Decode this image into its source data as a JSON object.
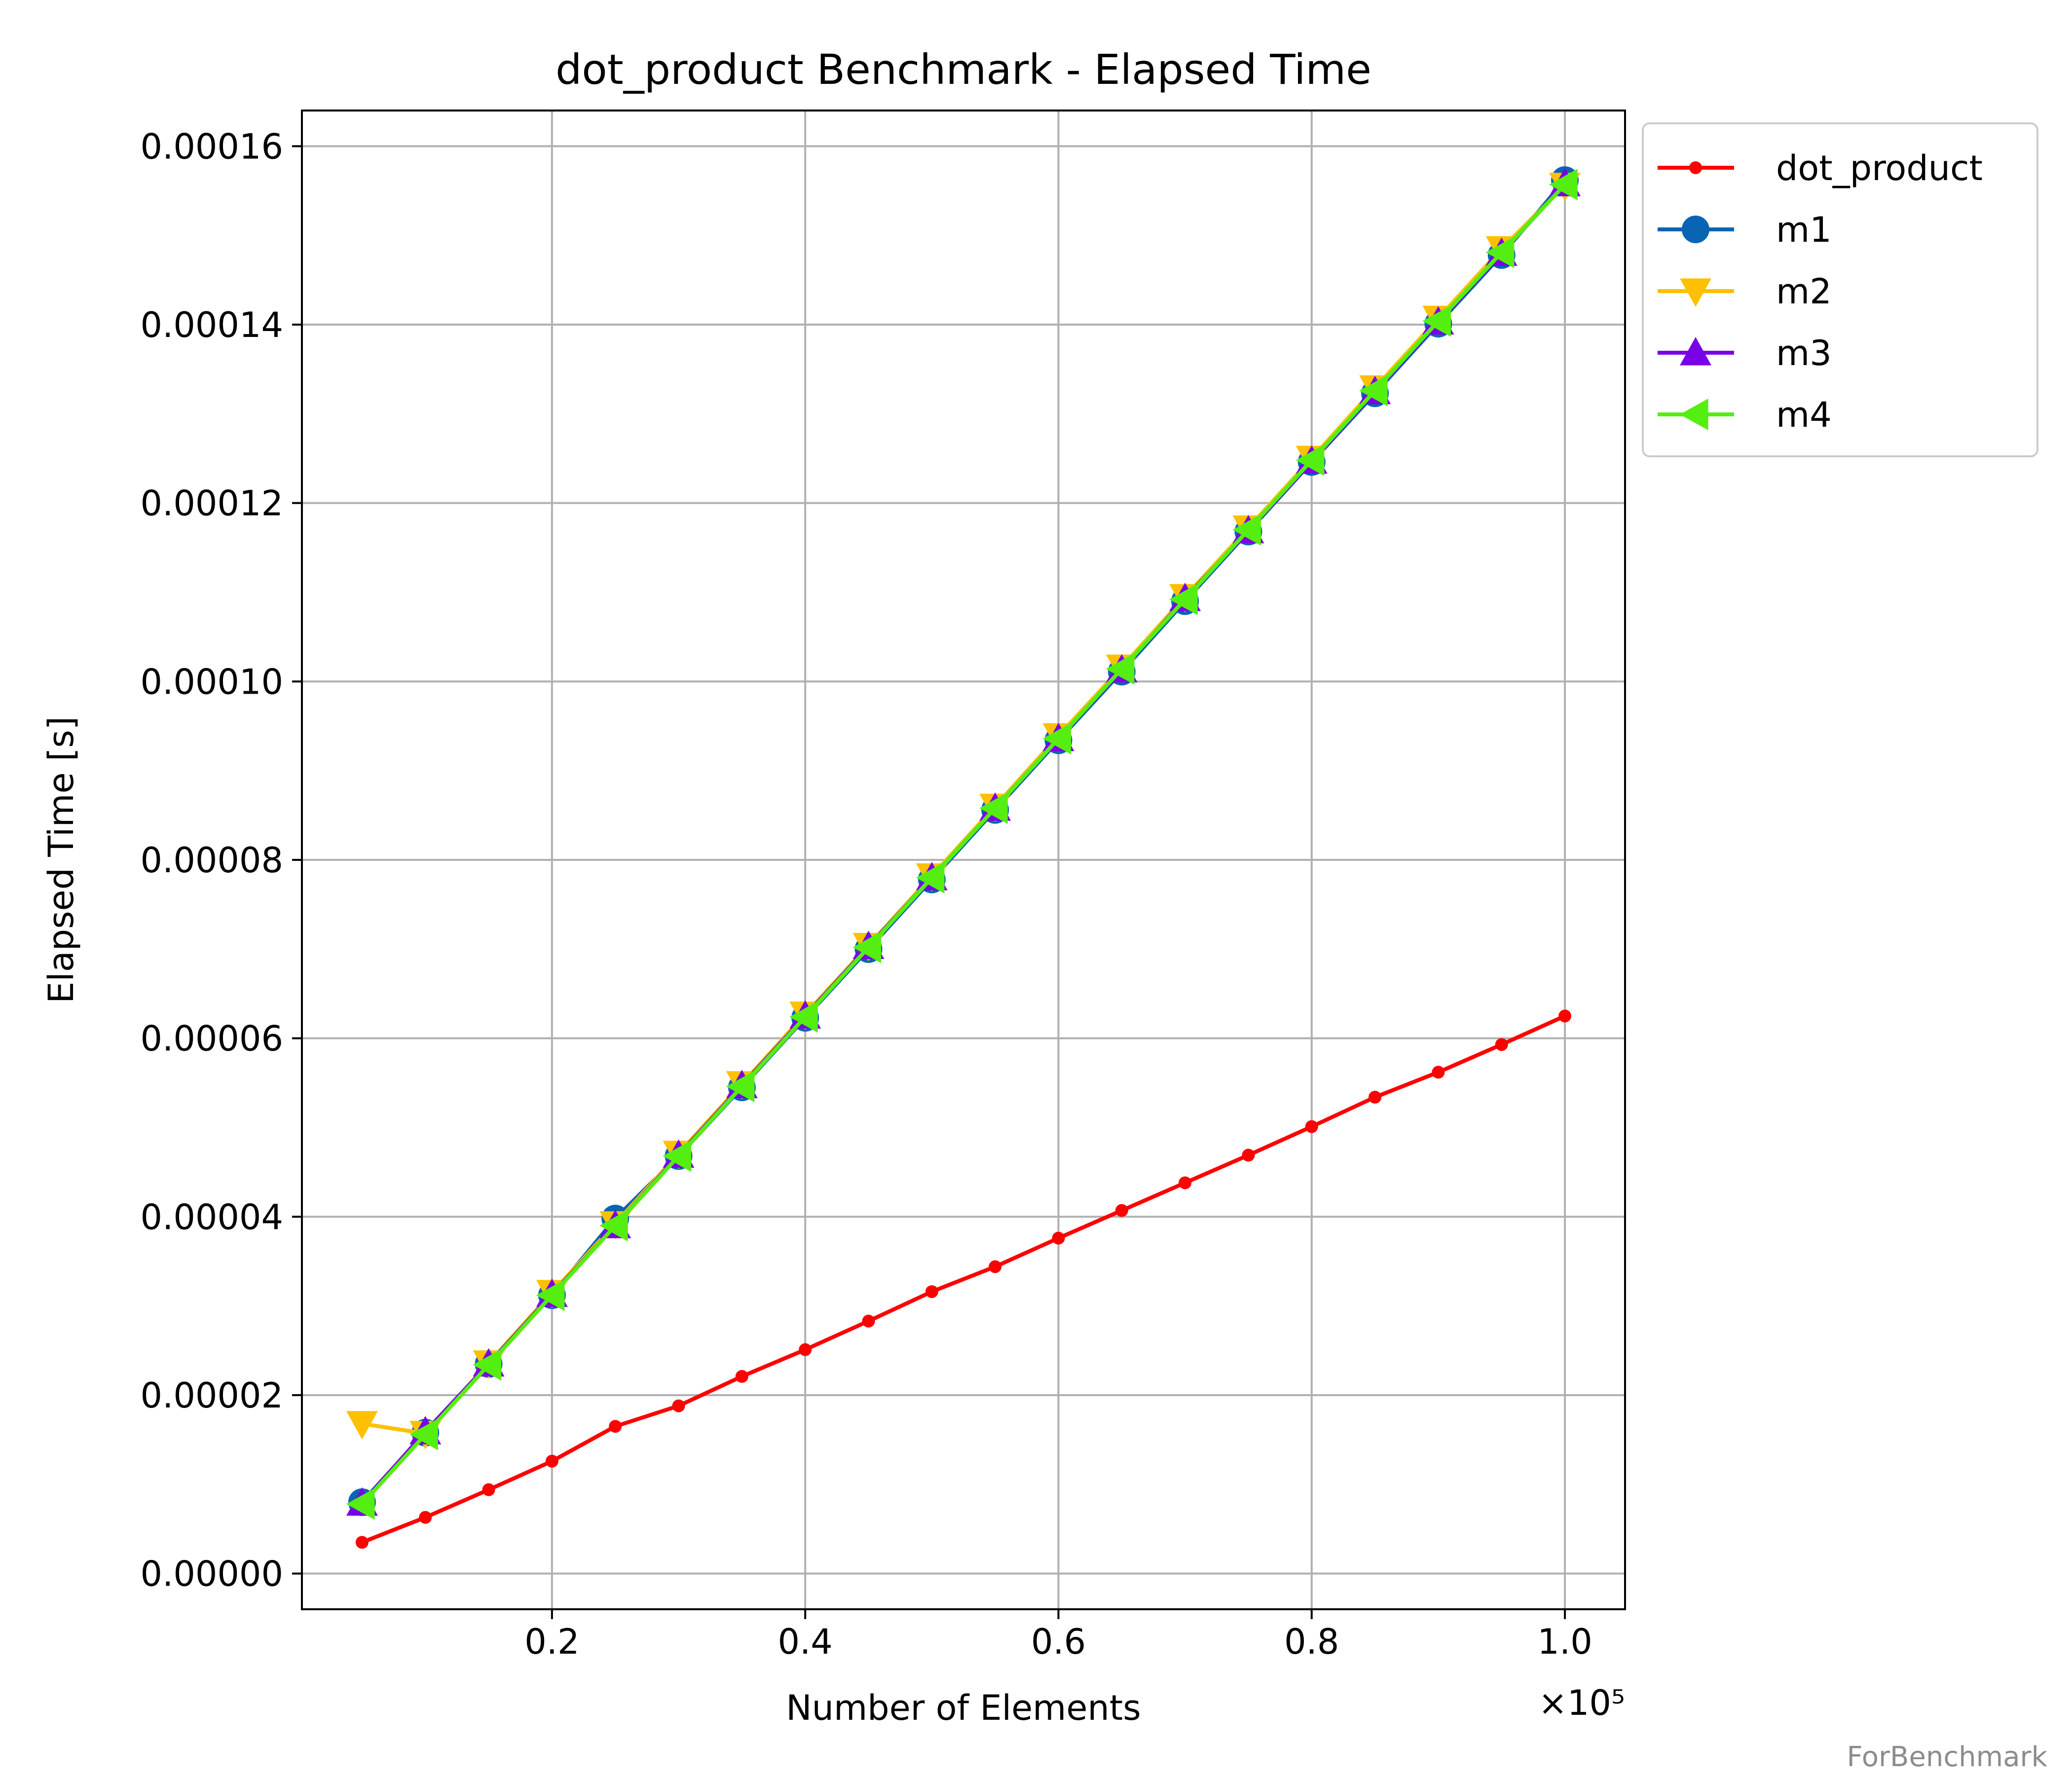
{
  "watermark": "ForBenchmark",
  "chart_data": {
    "type": "line",
    "title": "dot_product Benchmark - Elapsed Time",
    "xlabel": "Number of Elements",
    "ylabel": "Elapsed Time [s]",
    "x_multiplier": "×10⁵",
    "xlim": [
      0.0025,
      1.0475
    ],
    "ylim": [
      -4e-06,
      0.000164
    ],
    "xticks": [
      0.2,
      0.4,
      0.6,
      0.8,
      1.0
    ],
    "xtick_labels": [
      "0.2",
      "0.4",
      "0.6",
      "0.8",
      "1.0"
    ],
    "yticks": [
      0,
      2e-05,
      4e-05,
      6e-05,
      8e-05,
      0.0001,
      0.00012,
      0.00014,
      0.00016
    ],
    "ytick_labels": [
      "0.00000",
      "0.00002",
      "0.00004",
      "0.00006",
      "0.00008",
      "0.00010",
      "0.00012",
      "0.00014",
      "0.00016"
    ],
    "grid": true,
    "legend_position": "outside-top-right",
    "x": [
      0.05,
      0.1,
      0.15,
      0.2,
      0.25,
      0.3,
      0.35,
      0.4,
      0.45,
      0.5,
      0.55,
      0.6,
      0.65,
      0.7,
      0.75,
      0.8,
      0.85,
      0.9,
      0.95,
      1.0
    ],
    "series": [
      {
        "name": "dot_product",
        "color": "#ff0000",
        "marker": "point",
        "values": [
          3.5e-06,
          6.3e-06,
          9.4e-06,
          1.26e-05,
          1.65e-05,
          1.88e-05,
          2.21e-05,
          2.51e-05,
          2.83e-05,
          3.16e-05,
          3.44e-05,
          3.76e-05,
          4.07e-05,
          4.38e-05,
          4.69e-05,
          5.01e-05,
          5.34e-05,
          5.62e-05,
          5.93e-05,
          6.25e-05
        ]
      },
      {
        "name": "m1",
        "color": "#0a64b4",
        "marker": "circle",
        "values": [
          8e-06,
          1.58e-05,
          2.35e-05,
          3.12e-05,
          3.98e-05,
          4.68e-05,
          5.45e-05,
          6.23e-05,
          7e-05,
          7.78e-05,
          8.56e-05,
          9.34e-05,
          0.0001011,
          0.000109,
          0.0001168,
          0.0001246,
          0.0001323,
          0.0001401,
          0.0001478,
          0.0001562
        ]
      },
      {
        "name": "m2",
        "color": "#ffc000",
        "marker": "triangle-down",
        "values": [
          1.68e-05,
          1.57e-05,
          2.36e-05,
          3.15e-05,
          3.92e-05,
          4.71e-05,
          5.49e-05,
          6.27e-05,
          7.04e-05,
          7.82e-05,
          8.6e-05,
          9.39e-05,
          0.0001016,
          0.0001095,
          0.0001172,
          0.000125,
          0.0001329,
          0.0001407,
          0.0001485,
          0.0001556
        ]
      },
      {
        "name": "m3",
        "color": "#7a00e6",
        "marker": "triangle-up",
        "values": [
          7.9e-06,
          1.59e-05,
          2.35e-05,
          3.13e-05,
          3.9e-05,
          4.69e-05,
          5.47e-05,
          6.25e-05,
          7.03e-05,
          7.8e-05,
          8.58e-05,
          9.36e-05,
          0.0001013,
          0.0001093,
          0.0001169,
          0.0001247,
          0.0001325,
          0.0001403,
          0.000148,
          0.0001558
        ]
      },
      {
        "name": "m4",
        "color": "#55ee11",
        "marker": "triangle-left",
        "values": [
          7.8e-06,
          1.56e-05,
          2.34e-05,
          3.12e-05,
          3.9e-05,
          4.68e-05,
          5.46e-05,
          6.24e-05,
          7.02e-05,
          7.8e-05,
          8.58e-05,
          9.36e-05,
          0.0001014,
          0.0001092,
          0.000117,
          0.0001248,
          0.0001326,
          0.0001404,
          0.0001481,
          0.0001557
        ]
      }
    ]
  }
}
